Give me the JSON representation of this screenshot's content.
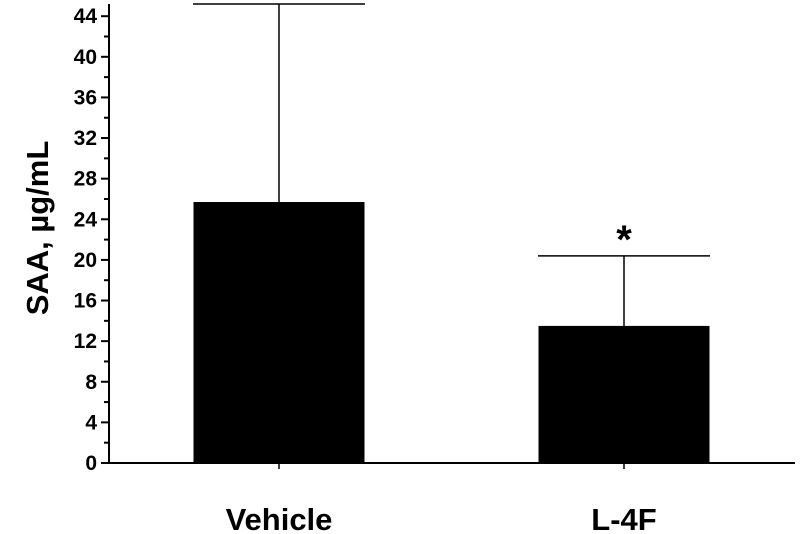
{
  "chart_data": {
    "type": "bar",
    "title": "",
    "xlabel": "",
    "ylabel": "SAA, µg/mL",
    "ylim": [
      0,
      45.2
    ],
    "yticks": [
      "0",
      "4",
      "8",
      "12",
      "16",
      "20",
      "24",
      "28",
      "32",
      "36",
      "40",
      "44"
    ],
    "categories": [
      "Vehicle",
      "L-4F"
    ],
    "values": [
      25.7,
      13.5
    ],
    "error_upper": [
      45.2,
      20.4
    ],
    "annotations": [
      "",
      "*"
    ],
    "bar_color": "#000000",
    "grid": false,
    "legend": "none"
  }
}
